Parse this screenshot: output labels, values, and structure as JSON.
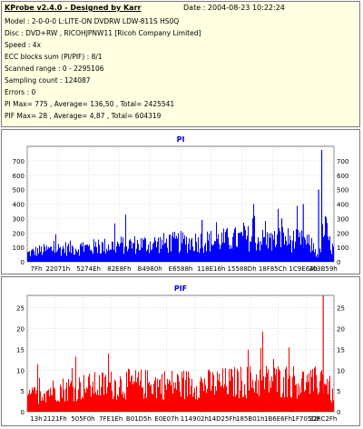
{
  "header": {
    "title": "KProbe v2.4.0 - Designed by Karr",
    "date": "Date : 2004-08-23 10:22:24"
  },
  "info_lines": [
    "Model : 2-0-0-0 L:LITE-ON DVDRW LDW-811S   HS0Q",
    "Disc : DVD+RW , RICOHJPNW11 [Ricoh Company Limited]",
    "Speed : 4x",
    "ECC blocks sum (PI/PIF) : 8/1",
    "Scanned range : 0 - 2295106",
    "Sampling count : 124087",
    "Errors : 0",
    "PI Max= 775 , Average= 136,50 , Total= 2425541",
    "PIF Max= 28 , Average= 4,87 , Total= 604319"
  ],
  "colors": {
    "pi": "#0000ff",
    "pif": "#ff0000",
    "title": "#0000cc",
    "info_bg": "#ffffe1"
  },
  "chart_data": [
    {
      "type": "area",
      "title": "PI",
      "ylim": [
        0,
        800
      ],
      "yticks": [
        0,
        100,
        200,
        300,
        400,
        500,
        600,
        700
      ],
      "xlim": [
        0,
        2295106
      ],
      "xtick_labels": [
        "7Fh",
        "22071h",
        "5274Eh",
        "82E8Fh",
        "B4980h",
        "E6588h",
        "118E16h",
        "15588Dh",
        "18F85Ch",
        "1C9E64h",
        "203B59h"
      ],
      "grid": true,
      "profile_x": [
        0,
        0.03,
        0.1,
        0.2,
        0.3,
        0.4,
        0.5,
        0.6,
        0.68,
        0.72,
        0.76,
        0.79,
        0.8,
        0.81,
        0.83,
        0.86,
        0.9,
        0.93,
        0.95,
        0.96,
        0.97,
        0.985,
        1.0
      ],
      "profile_y": [
        70,
        90,
        110,
        120,
        140,
        150,
        165,
        175,
        190,
        200,
        185,
        175,
        170,
        190,
        200,
        180,
        170,
        130,
        40,
        230,
        280,
        150,
        90
      ],
      "annotations_x": [
        0.57,
        0.795,
        0.83,
        0.9,
        0.95,
        0.96
      ],
      "annotations_y": [
        290,
        200,
        300,
        400,
        500,
        775
      ]
    },
    {
      "type": "area",
      "title": "PIF",
      "ylim": [
        0,
        28
      ],
      "yticks": [
        0,
        5,
        10,
        15,
        20,
        25
      ],
      "xlim": [
        0,
        2295106
      ],
      "xtick_labels": [
        "13h",
        "2121Fh",
        "505F0h",
        "7FE1Eh",
        "B01D5h",
        "E0E07h",
        "114902h",
        "14D25Fh",
        "185B01h",
        "1B6E6Fh",
        "1F705Dh",
        "22FC2Fh"
      ],
      "grid": true,
      "profile_x": [
        0,
        0.05,
        0.15,
        0.3,
        0.45,
        0.6,
        0.75,
        0.85,
        0.93,
        0.96,
        0.98,
        1.0
      ],
      "profile_y": [
        4,
        6,
        7,
        8,
        8,
        8,
        9,
        9,
        8,
        10,
        8,
        3
      ],
      "max_value": 28
    }
  ]
}
